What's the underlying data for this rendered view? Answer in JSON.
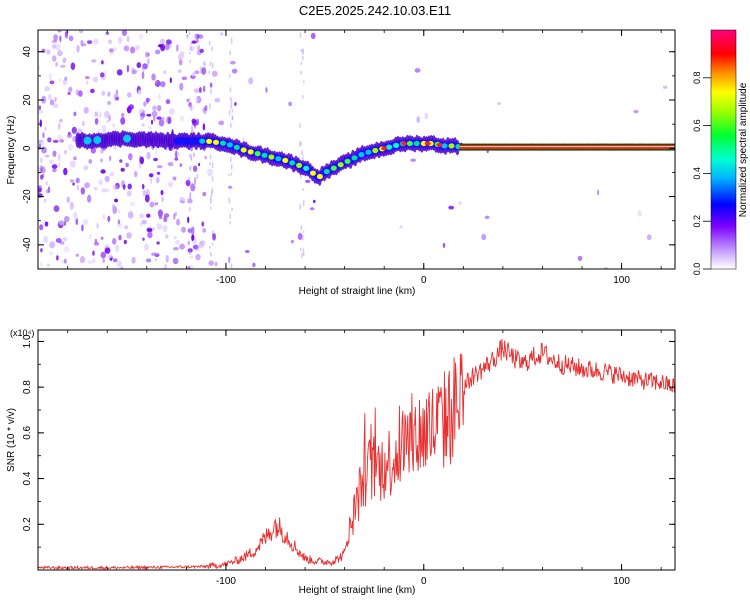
{
  "title": "C2E5.2025.242.10.03.E11",
  "chart_data": [
    {
      "type": "heatmap",
      "xlabel": "Height of straight line (km)",
      "ylabel": "Frequency (Hz)",
      "xlim": [
        -195,
        127
      ],
      "ylim": [
        -50,
        49
      ],
      "xticks": [
        -100,
        0,
        100
      ],
      "yticks": [
        -40,
        -20,
        0,
        20,
        40
      ],
      "ridge": {
        "x": [
          -175,
          -150,
          -125,
          -110,
          -100,
          -90,
          -80,
          -70,
          -60,
          -53,
          -50,
          -45,
          -40,
          -35,
          -30,
          -25,
          -20,
          -15,
          -10,
          -5,
          0,
          5,
          10,
          15,
          20,
          127
        ],
        "y": [
          3,
          4,
          3,
          3,
          2,
          -1,
          -3,
          -5,
          -8,
          -12,
          -10,
          -8,
          -6,
          -4,
          -2,
          -1,
          0,
          1,
          2,
          2,
          2,
          2,
          1,
          1,
          0.5,
          0.5
        ]
      },
      "colorbar": {
        "label": "Normalized spectral amplitude",
        "range": [
          0,
          1
        ],
        "ticks": [
          "0.0",
          "0.2",
          "0.4",
          "0.6",
          "0.8"
        ]
      }
    },
    {
      "type": "line",
      "xlabel": "Height of straight line (km)",
      "ylabel": "SNR (10 * v/v)",
      "multiplier_label": "(x10⁴)",
      "xlim": [
        -195,
        127
      ],
      "ylim": [
        0,
        1.05
      ],
      "xticks": [
        -100,
        0,
        100
      ],
      "yticks": [
        0.2,
        0.4,
        0.6,
        0.8,
        1.0
      ],
      "series": [
        {
          "name": "SNR",
          "color": "#e83030",
          "x": [
            -195,
            -150,
            -110,
            -100,
            -95,
            -90,
            -85,
            -80,
            -75,
            -70,
            -65,
            -60,
            -55,
            -50,
            -45,
            -40,
            -37,
            -33,
            -30,
            -25,
            -20,
            -15,
            -10,
            -5,
            0,
            5,
            10,
            15,
            20,
            25,
            30,
            35,
            40,
            45,
            50,
            55,
            60,
            65,
            70,
            80,
            90,
            100,
            110,
            120,
            127
          ],
          "y": [
            0.01,
            0.01,
            0.015,
            0.025,
            0.04,
            0.06,
            0.09,
            0.14,
            0.2,
            0.16,
            0.1,
            0.05,
            0.04,
            0.035,
            0.04,
            0.07,
            0.2,
            0.32,
            0.42,
            0.45,
            0.45,
            0.5,
            0.55,
            0.58,
            0.6,
            0.62,
            0.65,
            0.7,
            0.8,
            0.85,
            0.88,
            0.92,
            0.97,
            0.93,
            0.9,
            0.93,
            0.95,
            0.92,
            0.9,
            0.88,
            0.87,
            0.85,
            0.83,
            0.82,
            0.8
          ]
        }
      ]
    }
  ]
}
